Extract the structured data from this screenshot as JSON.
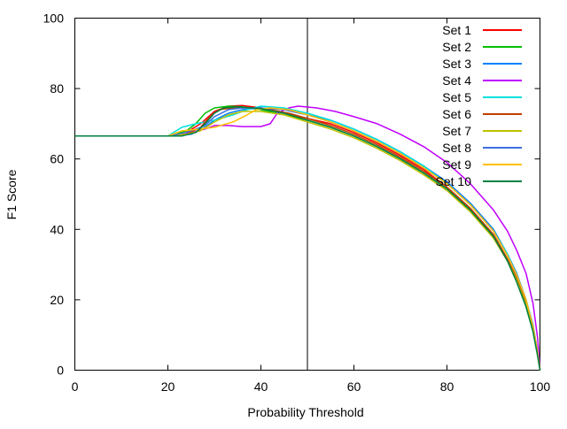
{
  "chart_data": {
    "type": "line",
    "title": "",
    "xlabel": "Probability Threshold",
    "ylabel": "F1 Score",
    "xlim": [
      0,
      100
    ],
    "ylim": [
      0,
      100
    ],
    "xticks": [
      0,
      20,
      40,
      60,
      80,
      100
    ],
    "yticks": [
      0,
      20,
      40,
      60,
      80,
      100
    ],
    "grid": false,
    "legend_position": "top-right",
    "vertical_line_x": 50,
    "series": [
      {
        "name": "Set 1",
        "color": "#ff0000",
        "points": [
          [
            0,
            66.5
          ],
          [
            20,
            66.5
          ],
          [
            24,
            67.5
          ],
          [
            27,
            70
          ],
          [
            30,
            73.5
          ],
          [
            33,
            75
          ],
          [
            36,
            75.2
          ],
          [
            40,
            74.5
          ],
          [
            45,
            73
          ],
          [
            50,
            71.5
          ],
          [
            55,
            70
          ],
          [
            60,
            67.5
          ],
          [
            65,
            64.5
          ],
          [
            70,
            61
          ],
          [
            75,
            57
          ],
          [
            80,
            52
          ],
          [
            85,
            46
          ],
          [
            90,
            38.5
          ],
          [
            93,
            31.5
          ],
          [
            95,
            26
          ],
          [
            97,
            19
          ],
          [
            98.5,
            12
          ],
          [
            99.5,
            5
          ],
          [
            100,
            0
          ]
        ]
      },
      {
        "name": "Set 2",
        "color": "#00c000",
        "points": [
          [
            0,
            66.5
          ],
          [
            20,
            66.5
          ],
          [
            24,
            68
          ],
          [
            26,
            70
          ],
          [
            28,
            73
          ],
          [
            30,
            74.5
          ],
          [
            33,
            75
          ],
          [
            36,
            74.8
          ],
          [
            40,
            74
          ],
          [
            45,
            72.5
          ],
          [
            50,
            71
          ],
          [
            55,
            69
          ],
          [
            60,
            66.5
          ],
          [
            65,
            63.5
          ],
          [
            70,
            60
          ],
          [
            75,
            56
          ],
          [
            80,
            51.5
          ],
          [
            85,
            45.5
          ],
          [
            90,
            38
          ],
          [
            93,
            31
          ],
          [
            95,
            25
          ],
          [
            97,
            18
          ],
          [
            98.5,
            11
          ],
          [
            99.5,
            4
          ],
          [
            100,
            0
          ]
        ]
      },
      {
        "name": "Set 3",
        "color": "#0080ff",
        "points": [
          [
            0,
            66.5
          ],
          [
            20,
            66.5
          ],
          [
            25,
            67
          ],
          [
            28,
            69
          ],
          [
            30,
            71
          ],
          [
            33,
            73
          ],
          [
            36,
            74
          ],
          [
            40,
            74.5
          ],
          [
            45,
            74
          ],
          [
            50,
            72.5
          ],
          [
            55,
            71
          ],
          [
            60,
            68.5
          ],
          [
            65,
            65.5
          ],
          [
            70,
            62
          ],
          [
            75,
            58
          ],
          [
            80,
            53.5
          ],
          [
            85,
            47.5
          ],
          [
            90,
            40
          ],
          [
            93,
            33
          ],
          [
            95,
            27.5
          ],
          [
            97,
            20
          ],
          [
            98.5,
            13
          ],
          [
            99.5,
            5
          ],
          [
            100,
            0
          ]
        ]
      },
      {
        "name": "Set 4",
        "color": "#c000ff",
        "points": [
          [
            0,
            66.5
          ],
          [
            20,
            66.5
          ],
          [
            25,
            67.5
          ],
          [
            28,
            68.5
          ],
          [
            30,
            69.5
          ],
          [
            33,
            69.5
          ],
          [
            36,
            69.2
          ],
          [
            40,
            69.2
          ],
          [
            42,
            70
          ],
          [
            43.5,
            73
          ],
          [
            46,
            74.5
          ],
          [
            48,
            75
          ],
          [
            52,
            74.5
          ],
          [
            56,
            73.5
          ],
          [
            60,
            72
          ],
          [
            65,
            70
          ],
          [
            70,
            67
          ],
          [
            75,
            63.5
          ],
          [
            80,
            59
          ],
          [
            85,
            53
          ],
          [
            90,
            45.5
          ],
          [
            93,
            39.5
          ],
          [
            95,
            34
          ],
          [
            97,
            27.5
          ],
          [
            98.5,
            19
          ],
          [
            99.5,
            9
          ],
          [
            100,
            0
          ]
        ]
      },
      {
        "name": "Set 5",
        "color": "#00e0e0",
        "points": [
          [
            0,
            66.5
          ],
          [
            20,
            66.5
          ],
          [
            23,
            69
          ],
          [
            26,
            70
          ],
          [
            30,
            71
          ],
          [
            34,
            72.5
          ],
          [
            37,
            74
          ],
          [
            40,
            75
          ],
          [
            45,
            74.5
          ],
          [
            50,
            73
          ],
          [
            55,
            71
          ],
          [
            60,
            68.5
          ],
          [
            65,
            65.5
          ],
          [
            70,
            62
          ],
          [
            75,
            58
          ],
          [
            80,
            53
          ],
          [
            85,
            47
          ],
          [
            90,
            39.5
          ],
          [
            93,
            33
          ],
          [
            95,
            27
          ],
          [
            97,
            20
          ],
          [
            98.5,
            12.5
          ],
          [
            99.5,
            5
          ],
          [
            100,
            0
          ]
        ]
      },
      {
        "name": "Set 6",
        "color": "#c04000",
        "points": [
          [
            0,
            66.5
          ],
          [
            20,
            66.5
          ],
          [
            24,
            67
          ],
          [
            27,
            69
          ],
          [
            29,
            72
          ],
          [
            31,
            74
          ],
          [
            34,
            74.5
          ],
          [
            38,
            74.5
          ],
          [
            42,
            74
          ],
          [
            46,
            73
          ],
          [
            50,
            71.5
          ],
          [
            55,
            69.5
          ],
          [
            60,
            67
          ],
          [
            65,
            64
          ],
          [
            70,
            60.5
          ],
          [
            75,
            56.5
          ],
          [
            80,
            52
          ],
          [
            85,
            46
          ],
          [
            90,
            38.5
          ],
          [
            93,
            31.5
          ],
          [
            95,
            26
          ],
          [
            97,
            19
          ],
          [
            98.5,
            12
          ],
          [
            99.5,
            5
          ],
          [
            100,
            0
          ]
        ]
      },
      {
        "name": "Set 7",
        "color": "#c0c000",
        "points": [
          [
            0,
            66.5
          ],
          [
            20,
            66.5
          ],
          [
            24,
            67
          ],
          [
            27,
            68
          ],
          [
            30,
            70.5
          ],
          [
            33,
            72.5
          ],
          [
            36,
            73.5
          ],
          [
            40,
            73.5
          ],
          [
            45,
            72.5
          ],
          [
            50,
            70.5
          ],
          [
            55,
            68.5
          ],
          [
            60,
            66
          ],
          [
            65,
            63
          ],
          [
            70,
            59.5
          ],
          [
            75,
            55.5
          ],
          [
            80,
            51
          ],
          [
            85,
            45
          ],
          [
            90,
            37.5
          ],
          [
            93,
            31
          ],
          [
            95,
            25.5
          ],
          [
            97,
            18.5
          ],
          [
            98.5,
            11.5
          ],
          [
            99.5,
            4.5
          ],
          [
            100,
            0
          ]
        ]
      },
      {
        "name": "Set 8",
        "color": "#4070e0",
        "points": [
          [
            0,
            66.5
          ],
          [
            20,
            66.5
          ],
          [
            24,
            67.5
          ],
          [
            28,
            69.5
          ],
          [
            30,
            72
          ],
          [
            33,
            74
          ],
          [
            36,
            74.5
          ],
          [
            40,
            74.5
          ],
          [
            45,
            74
          ],
          [
            50,
            72.5
          ],
          [
            55,
            70.5
          ],
          [
            60,
            68
          ],
          [
            65,
            65
          ],
          [
            70,
            61.5
          ],
          [
            75,
            57.5
          ],
          [
            80,
            53
          ],
          [
            85,
            47
          ],
          [
            90,
            39.5
          ],
          [
            93,
            32.5
          ],
          [
            95,
            27
          ],
          [
            97,
            20
          ],
          [
            98.5,
            12.5
          ],
          [
            99.5,
            5
          ],
          [
            100,
            0
          ]
        ]
      },
      {
        "name": "Set 9",
        "color": "#ffc000",
        "points": [
          [
            0,
            66.5
          ],
          [
            20,
            66.5
          ],
          [
            23,
            68
          ],
          [
            27,
            68.5
          ],
          [
            30,
            69
          ],
          [
            34,
            70.5
          ],
          [
            37,
            72.5
          ],
          [
            39,
            74
          ],
          [
            42,
            74.5
          ],
          [
            46,
            74
          ],
          [
            50,
            72.5
          ],
          [
            55,
            70.5
          ],
          [
            60,
            68
          ],
          [
            65,
            65
          ],
          [
            70,
            61.5
          ],
          [
            75,
            57.5
          ],
          [
            80,
            53
          ],
          [
            85,
            47
          ],
          [
            90,
            39.5
          ],
          [
            93,
            32.5
          ],
          [
            95,
            27
          ],
          [
            97,
            20
          ],
          [
            98.5,
            12.5
          ],
          [
            99.5,
            5
          ],
          [
            100,
            0
          ]
        ]
      },
      {
        "name": "Set 10",
        "color": "#008040",
        "points": [
          [
            0,
            66.5
          ],
          [
            19,
            66.5
          ],
          [
            23,
            66.5
          ],
          [
            26,
            67.5
          ],
          [
            28,
            70
          ],
          [
            30,
            73
          ],
          [
            32,
            74.5
          ],
          [
            35,
            74.8
          ],
          [
            40,
            74.3
          ],
          [
            45,
            73
          ],
          [
            50,
            71
          ],
          [
            55,
            69
          ],
          [
            60,
            66.5
          ],
          [
            65,
            63.5
          ],
          [
            70,
            60
          ],
          [
            75,
            56
          ],
          [
            80,
            51.5
          ],
          [
            85,
            45.5
          ],
          [
            90,
            38
          ],
          [
            93,
            31
          ],
          [
            95,
            25
          ],
          [
            97,
            18
          ],
          [
            98.5,
            11
          ],
          [
            99.5,
            4
          ],
          [
            100,
            0
          ]
        ]
      }
    ]
  }
}
